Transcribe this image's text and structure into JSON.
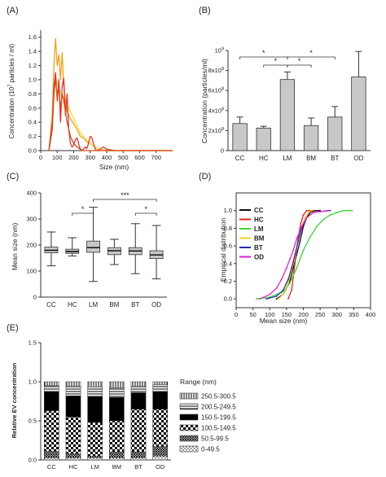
{
  "chart_data": [
    {
      "panel": "(A)",
      "type": "line",
      "xlabel": "Size (nm)",
      "ylabel": "Concentration (10",
      "ylabel_sup": "7",
      "ylabel_rest": " particles / ml)",
      "xlim": [
        0,
        800
      ],
      "ylim": [
        0,
        1.7
      ],
      "xticks": [
        0,
        100,
        200,
        300,
        400,
        500,
        600,
        700
      ],
      "yticks": [
        0.0,
        0.2,
        0.4,
        0.6,
        0.8,
        1.0,
        1.2,
        1.4,
        1.6
      ],
      "series": [
        {
          "color": "#f7a11a",
          "x": [
            50,
            70,
            80,
            90,
            100,
            110,
            120,
            130,
            140,
            160,
            180,
            200,
            220,
            240,
            260,
            280,
            300,
            320,
            340,
            360,
            380,
            400,
            450,
            500,
            800
          ],
          "y": [
            0,
            0.5,
            1.2,
            1.58,
            1.2,
            1.35,
            1.0,
            1.38,
            0.9,
            0.55,
            0.45,
            0.38,
            0.3,
            0.2,
            0.18,
            0.12,
            0.1,
            0.06,
            0.04,
            0.02,
            0.01,
            0,
            0,
            0,
            0
          ]
        },
        {
          "color": "#f5e02a",
          "x": [
            50,
            70,
            80,
            90,
            100,
            110,
            120,
            140,
            160,
            180,
            200,
            220,
            240,
            260,
            280,
            300,
            330,
            360,
            400,
            450,
            500,
            800
          ],
          "y": [
            0,
            0.3,
            0.8,
            1.05,
            0.95,
            0.9,
            0.8,
            0.75,
            0.65,
            0.55,
            0.45,
            0.35,
            0.25,
            0.2,
            0.15,
            0.1,
            0.05,
            0.02,
            0,
            0,
            0,
            0
          ]
        },
        {
          "color": "#e8342a",
          "x": [
            50,
            70,
            80,
            90,
            100,
            110,
            120,
            130,
            140,
            150,
            160,
            170,
            180,
            190,
            200,
            210,
            220,
            230,
            240,
            250,
            260,
            270,
            280,
            290,
            300,
            310,
            320,
            330,
            340,
            360,
            380,
            400,
            450,
            800
          ],
          "y": [
            0,
            0.4,
            0.9,
            1.1,
            0.7,
            1.0,
            0.4,
            0.9,
            1.02,
            0.5,
            0.8,
            0.3,
            0.1,
            0.05,
            0.08,
            0.15,
            0.18,
            0.1,
            0.02,
            0,
            0.02,
            0.05,
            0.03,
            0.1,
            0.2,
            0.18,
            0.1,
            0.03,
            0,
            0.02,
            0.05,
            0.02,
            0,
            0
          ]
        },
        {
          "color": "#d24a17",
          "x": [
            50,
            70,
            80,
            90,
            100,
            110,
            120,
            130,
            140,
            160,
            180,
            200,
            220,
            240,
            260,
            300,
            400,
            800
          ],
          "y": [
            0,
            0.3,
            0.8,
            1.0,
            0.8,
            0.85,
            0.6,
            0.8,
            0.7,
            0.4,
            0.2,
            0.1,
            0.05,
            0.02,
            0,
            0,
            0,
            0
          ]
        }
      ]
    },
    {
      "panel": "(B)",
      "type": "bar",
      "ylabel": "Concentration (particles/ml)",
      "categories": [
        "CC",
        "HC",
        "LM",
        "BM",
        "BT",
        "OD"
      ],
      "values": [
        270000000.0,
        225000000.0,
        710000000.0,
        250000000.0,
        335000000.0,
        735000000.0
      ],
      "errors": [
        65000000.0,
        18000000.0,
        75000000.0,
        75000000.0,
        105000000.0,
        255000000.0
      ],
      "ylim": [
        0,
        1000000000.0
      ],
      "yticks": [
        "0",
        "2x10",
        "4x10",
        "6x10",
        "8x10",
        "10"
      ],
      "ytick_exponents": [
        "",
        "8",
        "8",
        "8",
        "8",
        "9"
      ],
      "significance": [
        {
          "from": "CC",
          "to": "LM",
          "label": "*"
        },
        {
          "from": "LM",
          "to": "BT",
          "label": "*"
        },
        {
          "from": "HC",
          "to": "LM",
          "label": "*"
        },
        {
          "from": "LM",
          "to": "BM",
          "label": "*"
        }
      ]
    },
    {
      "panel": "(C)",
      "type": "box",
      "ylabel": "Mean size (nm)",
      "categories": [
        "CC",
        "HC",
        "LM",
        "BM",
        "BT",
        "OD"
      ],
      "ylim": [
        0,
        400
      ],
      "yticks": [
        0,
        100,
        200,
        300,
        400
      ],
      "boxes": [
        {
          "min": 120,
          "q1": 170,
          "median": 180,
          "q3": 192,
          "max": 250
        },
        {
          "min": 158,
          "q1": 168,
          "median": 175,
          "q3": 184,
          "max": 228
        },
        {
          "min": 60,
          "q1": 172,
          "median": 190,
          "q3": 215,
          "max": 345
        },
        {
          "min": 125,
          "q1": 163,
          "median": 178,
          "q3": 190,
          "max": 222
        },
        {
          "min": 90,
          "q1": 163,
          "median": 177,
          "q3": 190,
          "max": 282
        },
        {
          "min": 70,
          "q1": 148,
          "median": 162,
          "q3": 178,
          "max": 275
        }
      ],
      "significance": [
        {
          "from": "HC",
          "to": "LM",
          "label": "*"
        },
        {
          "from": "LM",
          "to": "OD",
          "label": "***"
        },
        {
          "from": "BT",
          "to": "OD",
          "label": "*"
        }
      ]
    },
    {
      "panel": "(D)",
      "type": "line",
      "xlabel": "Mean size (nm)",
      "ylabel": "Empirical distribution",
      "xlim": [
        0,
        400
      ],
      "ylim": [
        -0.1,
        1.2
      ],
      "xticks": [
        0,
        50,
        100,
        150,
        200,
        250,
        300,
        350,
        400
      ],
      "yticks": [
        "0.0",
        "0.2",
        "0.4",
        "0.6",
        "0.8",
        "1.0"
      ],
      "series": [
        {
          "name": "CC",
          "color": "#111111",
          "x": [
            120,
            140,
            160,
            170,
            180,
            190,
            200,
            210,
            220,
            235,
            250
          ],
          "y": [
            0,
            0.05,
            0.2,
            0.35,
            0.5,
            0.65,
            0.82,
            0.92,
            0.98,
            1.0,
            1.0
          ]
        },
        {
          "name": "HC",
          "color": "#e8231f",
          "x": [
            155,
            165,
            172,
            178,
            185,
            192,
            200,
            210,
            220,
            230
          ],
          "y": [
            0,
            0.1,
            0.3,
            0.5,
            0.7,
            0.85,
            0.95,
            1.0,
            1.0,
            1.0
          ]
        },
        {
          "name": "LM",
          "color": "#3bd633",
          "x": [
            60,
            100,
            140,
            160,
            180,
            200,
            220,
            240,
            260,
            280,
            300,
            320,
            345
          ],
          "y": [
            0,
            0.02,
            0.08,
            0.18,
            0.35,
            0.55,
            0.7,
            0.82,
            0.9,
            0.95,
            0.98,
            1.0,
            1.0
          ]
        },
        {
          "name": "BM",
          "color": "#f4d81c",
          "x": [
            125,
            140,
            155,
            165,
            175,
            185,
            195,
            205,
            215,
            225
          ],
          "y": [
            0,
            0.05,
            0.18,
            0.32,
            0.48,
            0.65,
            0.8,
            0.92,
            0.98,
            1.0
          ]
        },
        {
          "name": "BT",
          "color": "#2a2ab5",
          "x": [
            90,
            120,
            140,
            155,
            165,
            175,
            185,
            195,
            210,
            230,
            280
          ],
          "y": [
            0,
            0.03,
            0.1,
            0.22,
            0.35,
            0.5,
            0.66,
            0.8,
            0.92,
            0.98,
            1.0
          ]
        },
        {
          "name": "OD",
          "color": "#e21fd8",
          "x": [
            70,
            100,
            120,
            135,
            150,
            160,
            170,
            180,
            195,
            210,
            230,
            275
          ],
          "y": [
            0,
            0.05,
            0.12,
            0.22,
            0.35,
            0.45,
            0.55,
            0.68,
            0.82,
            0.92,
            0.98,
            1.0
          ]
        }
      ]
    },
    {
      "panel": "(E)",
      "type": "stacked_bar",
      "ylabel": "Relative EV concentration",
      "categories": [
        "CC",
        "HC",
        "LM",
        "BM",
        "BT",
        "OD"
      ],
      "ylim": [
        0,
        1.5
      ],
      "yticks": [
        "0.0",
        "0.5",
        "1.0",
        "1.5"
      ],
      "legend_title": "Range (nm)",
      "ranges": [
        "0-49.5",
        "50.5-99.5",
        "100.5-149.5",
        "150.5-199.5",
        "200.5-249.5",
        "250.5-300.5"
      ],
      "series": [
        {
          "name": "0-49.5",
          "values": [
            0.03,
            0.03,
            0.03,
            0.03,
            0.03,
            0.05
          ]
        },
        {
          "name": "50.5-99.5",
          "values": [
            0.08,
            0.05,
            0.02,
            0.07,
            0.07,
            0.12
          ]
        },
        {
          "name": "100.5-149.5",
          "values": [
            0.52,
            0.47,
            0.43,
            0.4,
            0.55,
            0.48
          ]
        },
        {
          "name": "150.5-199.5",
          "values": [
            0.24,
            0.27,
            0.33,
            0.3,
            0.21,
            0.22
          ]
        },
        {
          "name": "200.5-249.5",
          "values": [
            0.08,
            0.12,
            0.12,
            0.12,
            0.08,
            0.09
          ]
        },
        {
          "name": "250.5-300.5",
          "values": [
            0.05,
            0.06,
            0.07,
            0.08,
            0.06,
            0.04
          ]
        }
      ]
    }
  ]
}
